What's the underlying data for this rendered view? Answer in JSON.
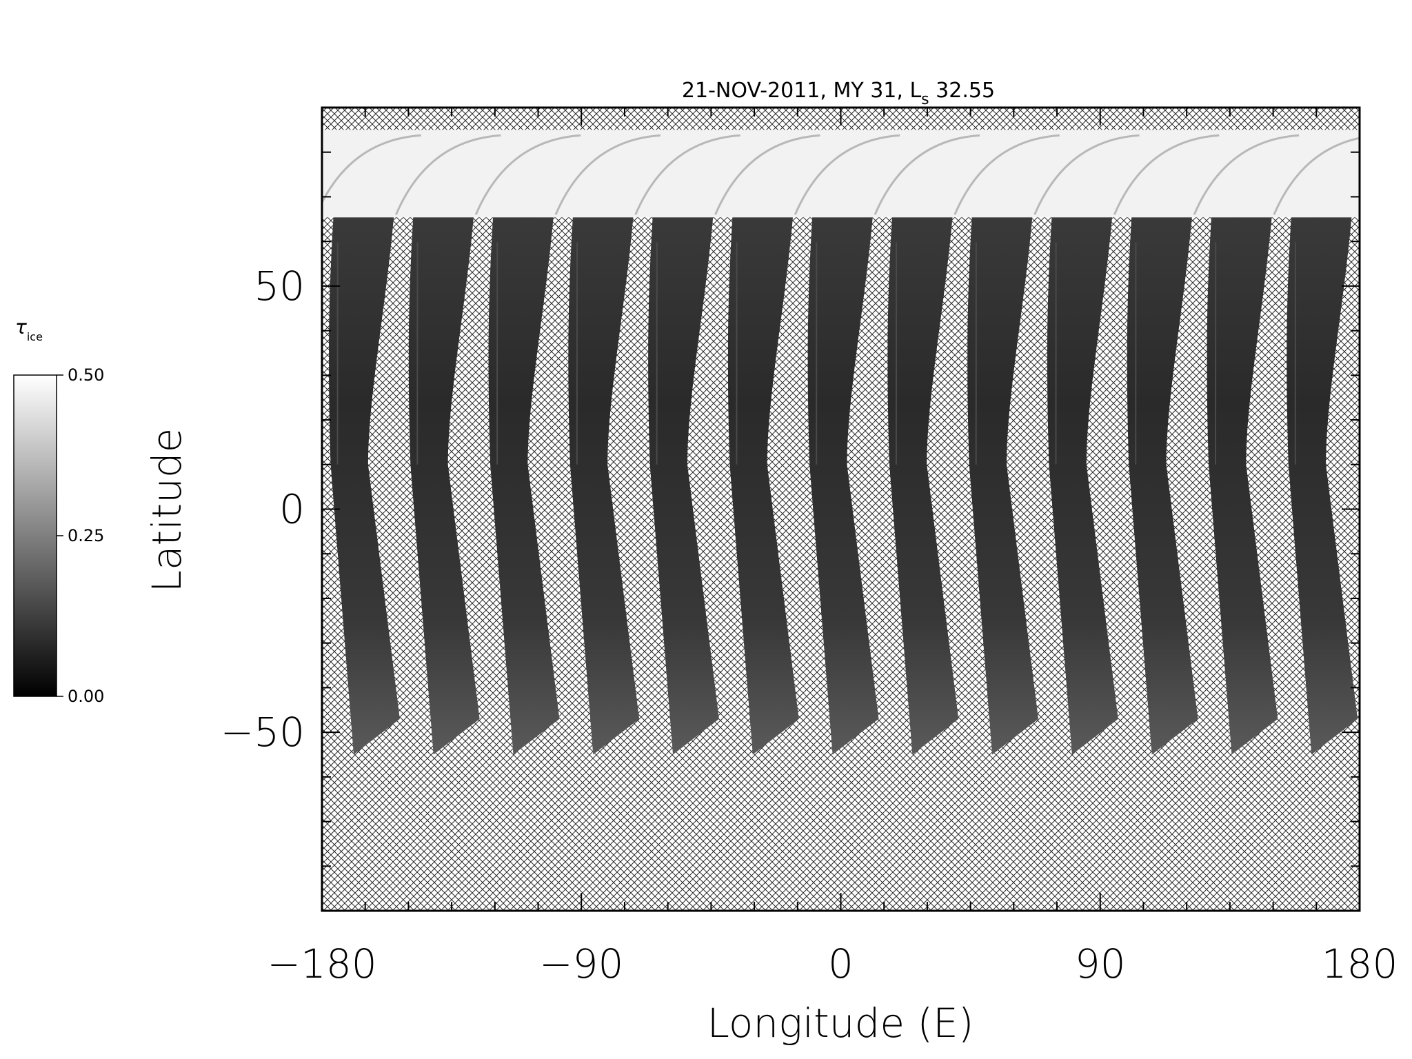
{
  "chart_data": {
    "type": "heatmap",
    "title_main": "21-NOV-2011, MY 31,  L",
    "title_sub": "s",
    "title_value": " 32.55",
    "xlabel": "Longitude (E)",
    "ylabel": "Latitude",
    "xlim": [
      -180,
      180
    ],
    "ylim": [
      -90,
      90
    ],
    "x_ticks": [
      -180,
      -90,
      0,
      90,
      180
    ],
    "x_tick_labels": [
      "−180",
      "−90",
      "0",
      "90",
      "180"
    ],
    "y_ticks": [
      -50,
      0,
      50
    ],
    "y_tick_labels": [
      "−50",
      "0",
      "50"
    ],
    "no_data_pattern": "crosshatch",
    "swath_count": 13,
    "swath_lat_range": [
      -55,
      66
    ],
    "polar_bright_lat_range": [
      66,
      85
    ],
    "colorbar": {
      "label_symbol": "τ",
      "label_sub": "ice",
      "min": 0.0,
      "max": 0.5,
      "ticks": [
        0.0,
        0.25,
        0.5
      ],
      "tick_labels": [
        "0.00",
        "0.25",
        "0.50"
      ],
      "colors": [
        "#000000",
        "#ffffff"
      ]
    }
  }
}
